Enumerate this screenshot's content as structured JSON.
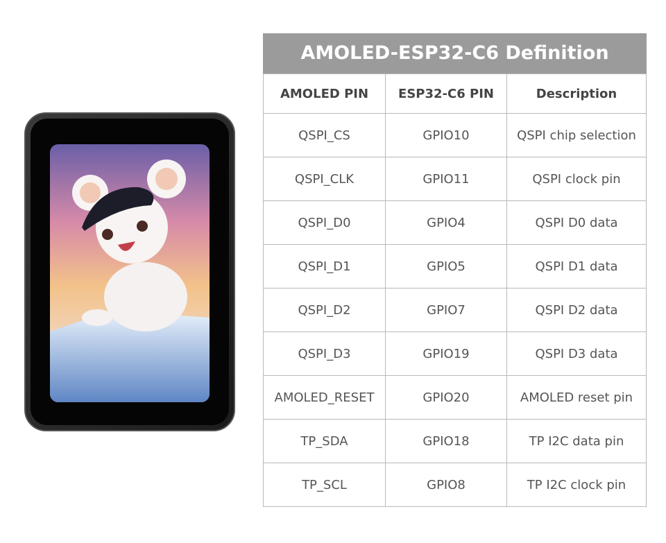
{
  "title": "AMOLED-ESP32-C6 Definition",
  "table": {
    "columns": [
      "AMOLED PIN",
      "ESP32-C6 PIN",
      "Description"
    ],
    "rows": [
      [
        "QSPI_CS",
        "GPIO10",
        "QSPI chip selection"
      ],
      [
        "QSPI_CLK",
        "GPIO11",
        "QSPI clock pin"
      ],
      [
        "QSPI_D0",
        "GPIO4",
        "QSPI D0 data"
      ],
      [
        "QSPI_D1",
        "GPIO5",
        "QSPI D1 data"
      ],
      [
        "QSPI_D2",
        "GPIO7",
        "QSPI D2 data"
      ],
      [
        "QSPI_D3",
        "GPIO19",
        "QSPI D3 data"
      ],
      [
        "AMOLED_RESET",
        "GPIO20",
        "AMOLED reset pin"
      ],
      [
        "TP_SDA",
        "GPIO18",
        "TP I2C data pin"
      ],
      [
        "TP_SCL",
        "GPIO8",
        "TP I2C clock pin"
      ]
    ]
  }
}
